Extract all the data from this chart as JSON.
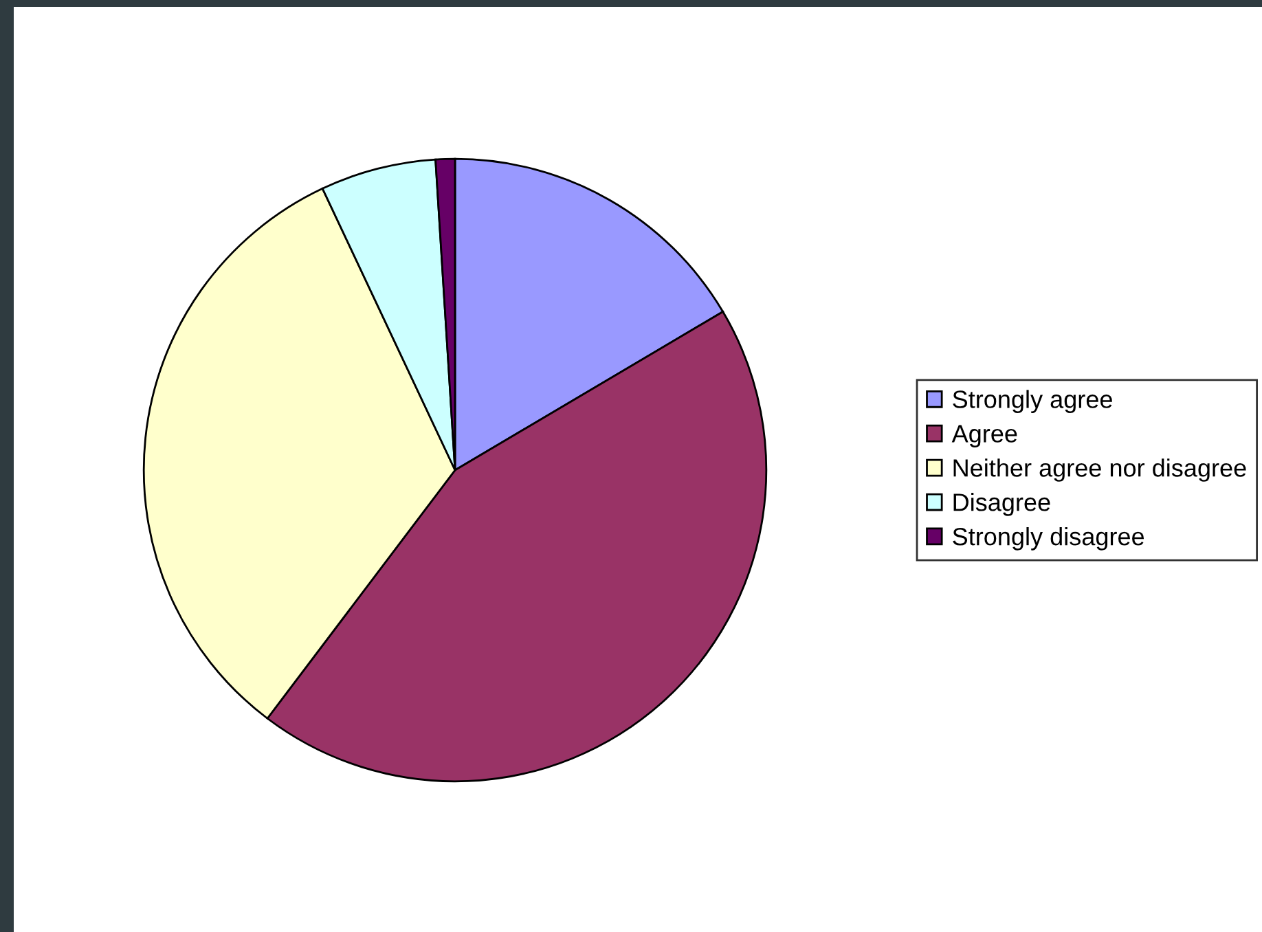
{
  "chart_data": {
    "type": "pie",
    "categories": [
      "Strongly agree",
      "Agree",
      "Neither agree nor disagree",
      "Disagree",
      "Strongly disagree"
    ],
    "values": [
      16.5,
      43.8,
      32.7,
      6.0,
      1.0
    ],
    "colors": [
      "#9999ff",
      "#993366",
      "#ffffcc",
      "#ccffff",
      "#660066"
    ],
    "legend": "right"
  }
}
